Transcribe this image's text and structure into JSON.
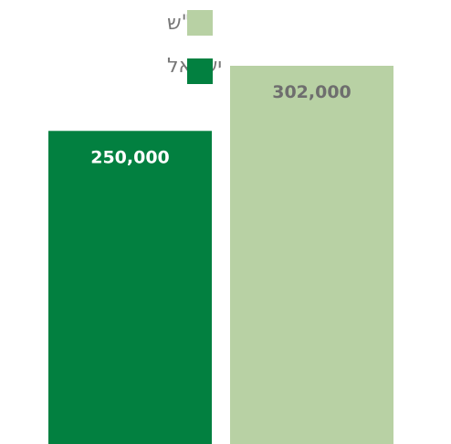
{
  "chart_data": {
    "type": "bar",
    "categories": [
      "ישראל",
      "יו\"ש"
    ],
    "values": [
      250000,
      302000
    ],
    "value_labels": [
      "250,000",
      "302,000"
    ],
    "colors": [
      "#028040",
      "#b8d1a4"
    ],
    "label_colors": [
      "#ffffff",
      "#6e6e6e"
    ],
    "legend": {
      "placement": "top-right",
      "entries": [
        {
          "label": "יו\"ש",
          "color": "#b8d1a4"
        },
        {
          "label": "ישראל",
          "color": "#028040"
        }
      ]
    },
    "title": "",
    "xlabel": "",
    "ylabel": "",
    "ylim": [
      0,
      302000
    ],
    "grid": false
  }
}
